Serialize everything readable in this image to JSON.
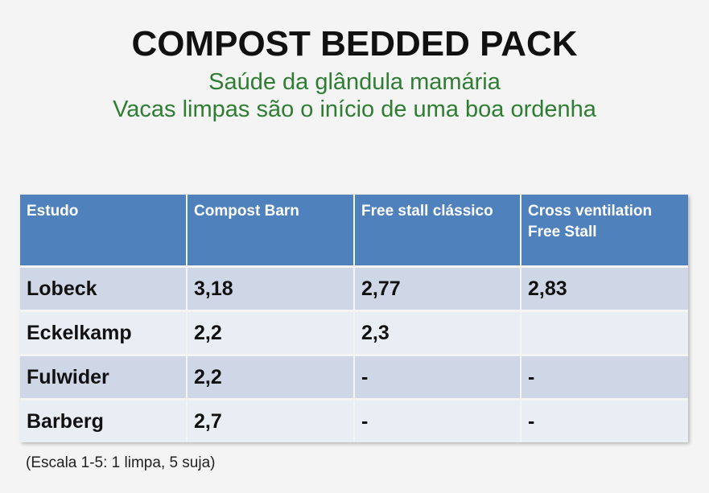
{
  "title": "COMPOST BEDDED PACK",
  "subtitle_line1": "Saúde da glândula mamária",
  "subtitle_line2": "Vacas limpas são o início de uma boa ordenha",
  "table": {
    "headers": [
      "Estudo",
      "Compost Barn",
      "Free stall clássico",
      "Cross ventilation Free Stall"
    ],
    "rows": [
      [
        "Lobeck",
        "3,18",
        "2,77",
        "2,83"
      ],
      [
        "Eckelkamp",
        "2,2",
        "2,3",
        ""
      ],
      [
        "Fulwider",
        "2,2",
        "-",
        "-"
      ],
      [
        "Barberg",
        "2,7",
        "-",
        "-"
      ]
    ]
  },
  "note": "(Escala 1-5: 1 limpa, 5 suja)"
}
